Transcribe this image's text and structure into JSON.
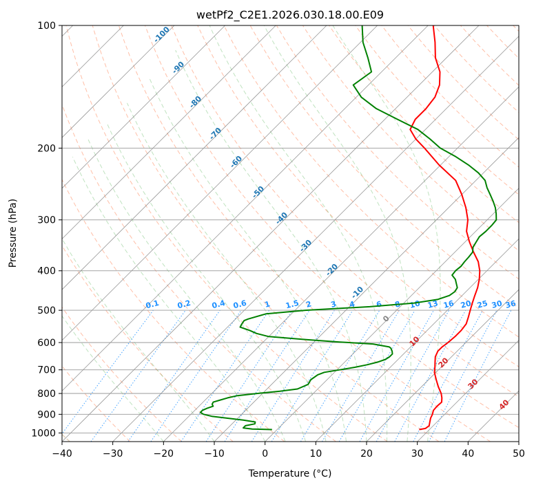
{
  "chart_data": {
    "type": "skew-t",
    "title": "wetPf2_C2E1.2026.030.18.00.E09",
    "xlabel": "Temperature (°C)",
    "ylabel": "Pressure (hPa)",
    "xlim": [
      -40,
      50
    ],
    "ylim": [
      1050,
      100
    ],
    "x_ticks": [
      -40,
      -30,
      -20,
      -10,
      0,
      10,
      20,
      30,
      40,
      50
    ],
    "y_ticks": [
      100,
      200,
      300,
      400,
      500,
      600,
      700,
      800,
      900,
      1000
    ],
    "temperature_profile": {
      "name": "Temperature",
      "color": "#ff0000",
      "points": [
        [
          981,
          28
        ],
        [
          975,
          29
        ],
        [
          960,
          29.2
        ],
        [
          940,
          28.6
        ],
        [
          920,
          28
        ],
        [
          900,
          27.6
        ],
        [
          880,
          27
        ],
        [
          860,
          26.9
        ],
        [
          840,
          27
        ],
        [
          820,
          26.2
        ],
        [
          800,
          25.2
        ],
        [
          770,
          23.3
        ],
        [
          740,
          21.5
        ],
        [
          710,
          19.7
        ],
        [
          690,
          18.8
        ],
        [
          670,
          17.8
        ],
        [
          650,
          16.8
        ],
        [
          630,
          16.2
        ],
        [
          615,
          16.2
        ],
        [
          600,
          16.5
        ],
        [
          580,
          16.7
        ],
        [
          560,
          16.7
        ],
        [
          540,
          16.4
        ],
        [
          520,
          15.5
        ],
        [
          500,
          14.5
        ],
        [
          480,
          13.5
        ],
        [
          460,
          12.5
        ],
        [
          440,
          11.5
        ],
        [
          420,
          10.2
        ],
        [
          400,
          8.6
        ],
        [
          380,
          6.5
        ],
        [
          360,
          3.7
        ],
        [
          340,
          0.9
        ],
        [
          320,
          -1.8
        ],
        [
          300,
          -3.8
        ],
        [
          280,
          -6.6
        ],
        [
          260,
          -10
        ],
        [
          240,
          -14
        ],
        [
          220,
          -20.3
        ],
        [
          200,
          -26.5
        ],
        [
          190,
          -30
        ],
        [
          180,
          -33
        ],
        [
          170,
          -34
        ],
        [
          160,
          -34
        ],
        [
          150,
          -34.5
        ],
        [
          140,
          -36
        ],
        [
          130,
          -38.5
        ],
        [
          120,
          -42.2
        ],
        [
          110,
          -45.3
        ],
        [
          100,
          -49
        ]
      ]
    },
    "dewpoint_profile": {
      "name": "Dewpoint",
      "color": "#008000",
      "points": [
        [
          981,
          -1
        ],
        [
          978,
          -5
        ],
        [
          972,
          -7
        ],
        [
          960,
          -7
        ],
        [
          950,
          -5.5
        ],
        [
          940,
          -5.8
        ],
        [
          930,
          -8.5
        ],
        [
          920,
          -12
        ],
        [
          910,
          -15.5
        ],
        [
          900,
          -17.5
        ],
        [
          890,
          -18.5
        ],
        [
          880,
          -18.5
        ],
        [
          870,
          -18
        ],
        [
          860,
          -17.2
        ],
        [
          850,
          -17.8
        ],
        [
          840,
          -18
        ],
        [
          830,
          -17
        ],
        [
          820,
          -16
        ],
        [
          810,
          -14.5
        ],
        [
          800,
          -11
        ],
        [
          790,
          -7
        ],
        [
          780,
          -4
        ],
        [
          760,
          -2.8
        ],
        [
          740,
          -3.2
        ],
        [
          720,
          -2.8
        ],
        [
          710,
          -2
        ],
        [
          700,
          0.5
        ],
        [
          690,
          3
        ],
        [
          680,
          5
        ],
        [
          670,
          6.5
        ],
        [
          660,
          7.5
        ],
        [
          650,
          7.8
        ],
        [
          640,
          7.8
        ],
        [
          630,
          7.2
        ],
        [
          620,
          6.4
        ],
        [
          615,
          5.8
        ],
        [
          605,
          2
        ],
        [
          598,
          -5
        ],
        [
          590,
          -12
        ],
        [
          580,
          -20
        ],
        [
          570,
          -23
        ],
        [
          560,
          -25
        ],
        [
          550,
          -27.5
        ],
        [
          540,
          -27.8
        ],
        [
          530,
          -28
        ],
        [
          525,
          -27.5
        ],
        [
          510,
          -25
        ],
        [
          500,
          -18
        ],
        [
          490,
          -6
        ],
        [
          480,
          2
        ],
        [
          470,
          6
        ],
        [
          460,
          7.5
        ],
        [
          450,
          7.8
        ],
        [
          440,
          7.5
        ],
        [
          430,
          6.5
        ],
        [
          420,
          5.5
        ],
        [
          410,
          4
        ],
        [
          400,
          3.8
        ],
        [
          390,
          4
        ],
        [
          380,
          3.8
        ],
        [
          370,
          3.7
        ],
        [
          360,
          3.5
        ],
        [
          350,
          2.6
        ],
        [
          340,
          2.2
        ],
        [
          330,
          1.8
        ],
        [
          320,
          2
        ],
        [
          310,
          2
        ],
        [
          300,
          1.8
        ],
        [
          290,
          0.6
        ],
        [
          280,
          -0.8
        ],
        [
          270,
          -2.5
        ],
        [
          260,
          -4.4
        ],
        [
          250,
          -6.4
        ],
        [
          240,
          -8.2
        ],
        [
          230,
          -11
        ],
        [
          220,
          -14.5
        ],
        [
          210,
          -18.6
        ],
        [
          200,
          -23.4
        ],
        [
          190,
          -27.2
        ],
        [
          180,
          -31.5
        ],
        [
          170,
          -37.5
        ],
        [
          160,
          -43.8
        ],
        [
          150,
          -49
        ],
        [
          140,
          -53
        ],
        [
          130,
          -52
        ],
        [
          120,
          -55.5
        ],
        [
          110,
          -59.5
        ],
        [
          100,
          -63
        ]
      ]
    },
    "isotherm_step": 10,
    "dry_adiabat_labels": [
      "-100",
      "-90",
      "-80",
      "-70",
      "-60",
      "-50",
      "-40",
      "-30",
      "-20",
      "-10"
    ],
    "mixing_ratio_labels": [
      "0.1",
      "0.2",
      "0.4",
      "0.6",
      "1",
      "1.5",
      "2",
      "3",
      "4",
      "6",
      "8",
      "10",
      "13",
      "16",
      "20",
      "25",
      "30",
      "36"
    ],
    "moist_adiabat_labels": [
      "0",
      "10",
      "20",
      "30",
      "40"
    ]
  }
}
